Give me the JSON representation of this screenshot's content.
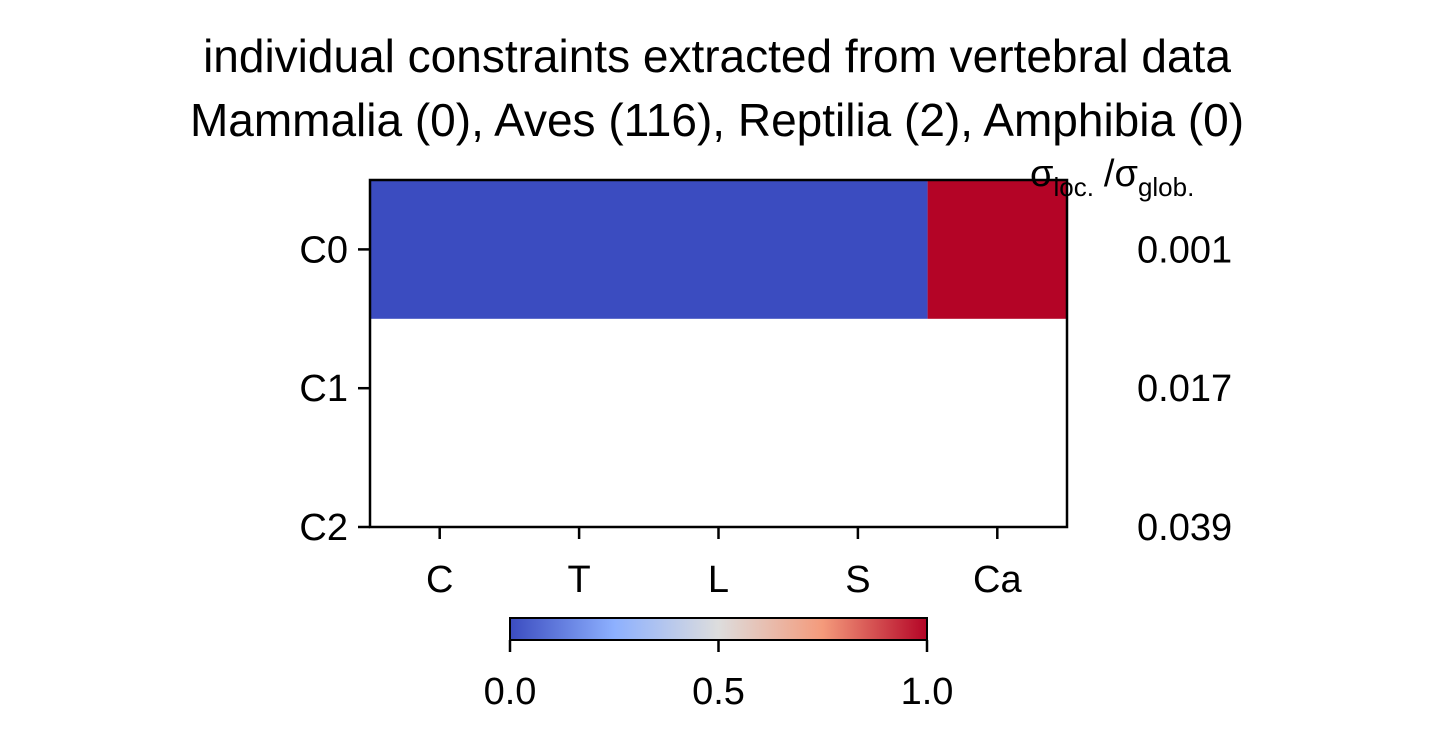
{
  "chart_data": {
    "type": "heatmap",
    "title_lines": [
      "individual constraints extracted from vertebral data",
      "Mammalia (0), Aves (116), Reptilia (2), Amphibia (0)"
    ],
    "x_categories": [
      "C",
      "T",
      "L",
      "S",
      "Ca"
    ],
    "y_categories": [
      "C0",
      "C1",
      "C2"
    ],
    "segments": [
      {
        "row": "C0",
        "x_start": -0.5,
        "x_end": 3.5,
        "value": 0.0
      },
      {
        "row": "C0",
        "x_start": 3.5,
        "x_end": 4.5,
        "value": 1.0
      }
    ],
    "y_range": [
      -0.5,
      2.0
    ],
    "x_range": [
      -0.5,
      4.5
    ],
    "sigma_label": {
      "main": "σ",
      "sub1": "loc.",
      "sep": "/σ",
      "sub2": "glob."
    },
    "sigma_ratios": [
      "0.001",
      "0.017",
      "0.039"
    ],
    "colorbar": {
      "colormap": "coolwarm",
      "range": [
        0.0,
        1.0
      ],
      "ticks": [
        "0.0",
        "0.5",
        "1.0"
      ],
      "tick_values": [
        0.0,
        0.5,
        1.0
      ],
      "stops": [
        "#3b4cc0",
        "#8db0fe",
        "#dddddd",
        "#f49a7b",
        "#b40426"
      ],
      "orientation": "horizontal"
    },
    "colors": {
      "low": "#3b4cc0",
      "high": "#b40426",
      "empty": "#ffffff"
    }
  }
}
